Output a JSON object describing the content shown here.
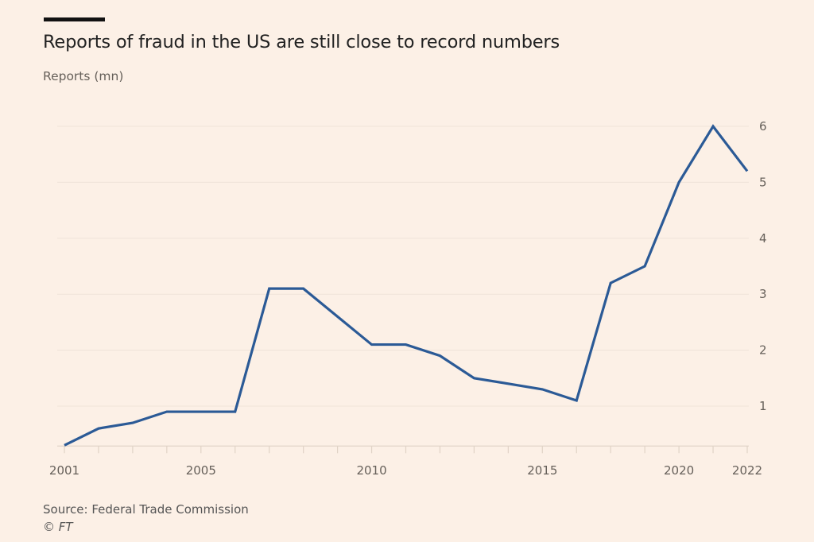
{
  "header": {
    "title": "Reports of fraud in the US are still close to record numbers",
    "subtitle": "Reports (mn)"
  },
  "footer": {
    "source": "Source: Federal Trade Commission",
    "credit": "© FT"
  },
  "colors": {
    "line": "#2b5a96",
    "background": "#fcf0e6",
    "grid": "#efe3d8"
  },
  "chart_data": {
    "type": "line",
    "title": "Reports of fraud in the US are still close to record numbers",
    "ylabel": "Reports (mn)",
    "xlabel": "",
    "ylim": [
      0.3,
      6
    ],
    "yticks": [
      1,
      2,
      3,
      4,
      5,
      6
    ],
    "grid": true,
    "y_axis_side": "right",
    "x_tick_labels": [
      {
        "index": 0,
        "label": "2001"
      },
      {
        "index": 4,
        "label": "2005"
      },
      {
        "index": 9,
        "label": "2010"
      },
      {
        "index": 14,
        "label": "2015"
      },
      {
        "index": 18,
        "label": "2020"
      },
      {
        "index": 20,
        "label": "2022"
      }
    ],
    "series": [
      {
        "name": "Reports",
        "values": [
          0.3,
          0.6,
          0.7,
          0.9,
          0.9,
          0.9,
          3.1,
          3.1,
          2.6,
          2.1,
          2.1,
          1.9,
          1.5,
          1.4,
          1.3,
          1.1,
          3.2,
          3.5,
          5.0,
          6.0,
          5.2
        ]
      }
    ]
  }
}
